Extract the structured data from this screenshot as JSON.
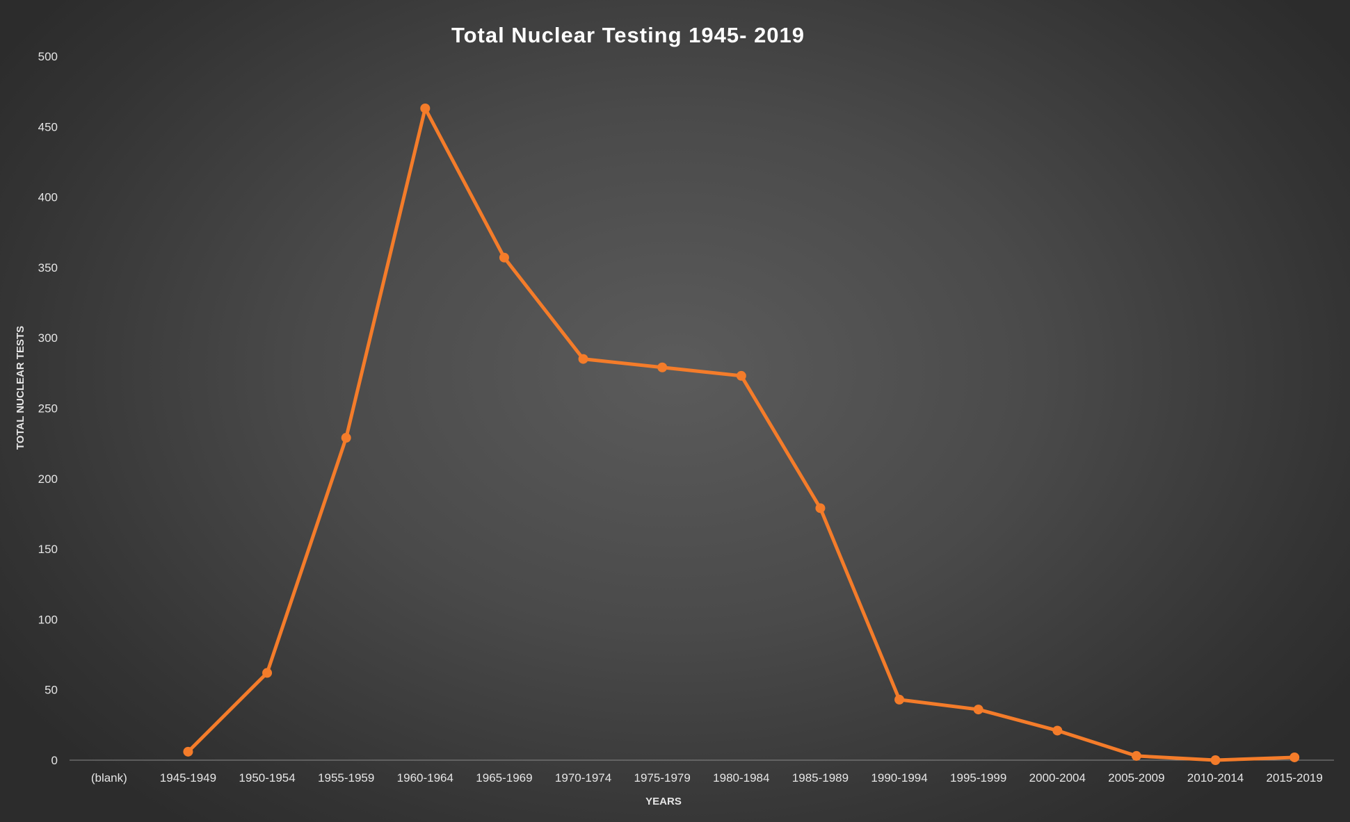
{
  "chart_data": {
    "type": "line",
    "title": "Total Nuclear Testing 1945- 2019",
    "xlabel": "YEARS",
    "ylabel": "TOTAL NUCLEAR TESTS",
    "categories": [
      "(blank)",
      "1945-1949",
      "1950-1954",
      "1955-1959",
      "1960-1964",
      "1965-1969",
      "1970-1974",
      "1975-1979",
      "1980-1984",
      "1985-1989",
      "1990-1994",
      "1995-1999",
      "2000-2004",
      "2005-2009",
      "2010-2014",
      "2015-2019"
    ],
    "series": [
      {
        "values": [
          null,
          6,
          62,
          229,
          463,
          357,
          285,
          279,
          273,
          179,
          43,
          36,
          21,
          3,
          0,
          2
        ]
      }
    ],
    "ylim": [
      0,
      500
    ],
    "yticks": [
      0,
      50,
      100,
      150,
      200,
      250,
      300,
      350,
      400,
      450,
      500
    ],
    "grid": false,
    "legend": "none",
    "colors": {
      "line": "#f47c2a",
      "text": "#e6e6e6",
      "axis": "#8a8a8a"
    }
  }
}
